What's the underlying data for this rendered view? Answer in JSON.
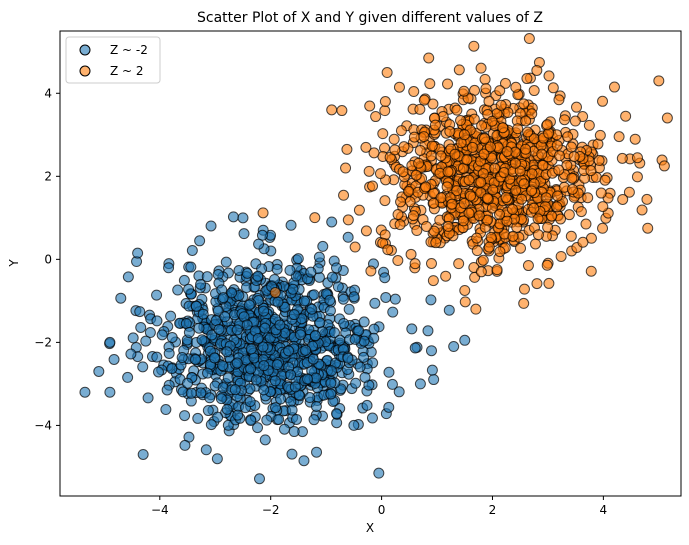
{
  "chart_data": {
    "type": "scatter",
    "title": "Scatter Plot of X and Y given different values of Z",
    "xlabel": "X",
    "ylabel": "Y",
    "xlim": [
      -5.8,
      5.4
    ],
    "ylim": [
      -5.7,
      5.5
    ],
    "xticks": [
      -4,
      -2,
      0,
      2,
      4
    ],
    "yticks": [
      -4,
      -2,
      0,
      2,
      4
    ],
    "xtick_labels": [
      "−4",
      "−2",
      "0",
      "2",
      "4"
    ],
    "ytick_labels": [
      "−4",
      "−2",
      "0",
      "2",
      "4"
    ],
    "grid": false,
    "legend_position": "top-left",
    "series": [
      {
        "name": "Z ~ -2",
        "color": "#1f77b4",
        "center": [
          -2,
          -2
        ],
        "spread": 1,
        "count": 1000,
        "x": [
          -5.35,
          -4.3,
          -4.9,
          -0.05,
          -0.9,
          -4.4,
          -2.5,
          -0.5,
          0.7,
          0.9,
          -1.4,
          -4.9,
          -5.1,
          1.5,
          1.3
        ],
        "y": [
          -3.2,
          -4.7,
          -2.0,
          -5.15,
          0.9,
          0.15,
          1.0,
          -4.0,
          -3.0,
          -2.2,
          -4.85,
          -3.2,
          -2.7,
          -1.95,
          -2.1
        ]
      },
      {
        "name": "Z ~ 2",
        "color": "#ff7f0e",
        "center": [
          2,
          2
        ],
        "spread": 1,
        "count": 1000,
        "x": [
          0.85,
          0.1,
          5.0,
          4.8,
          5.1,
          -0.9,
          -0.65,
          -0.6,
          1.7,
          1.5,
          1.8,
          0.9,
          2.8,
          4.2
        ],
        "y": [
          4.85,
          4.5,
          4.3,
          0.75,
          2.25,
          3.6,
          2.2,
          0.95,
          -1.2,
          -0.75,
          -0.3,
          -0.1,
          4.55,
          4.15
        ]
      }
    ]
  }
}
